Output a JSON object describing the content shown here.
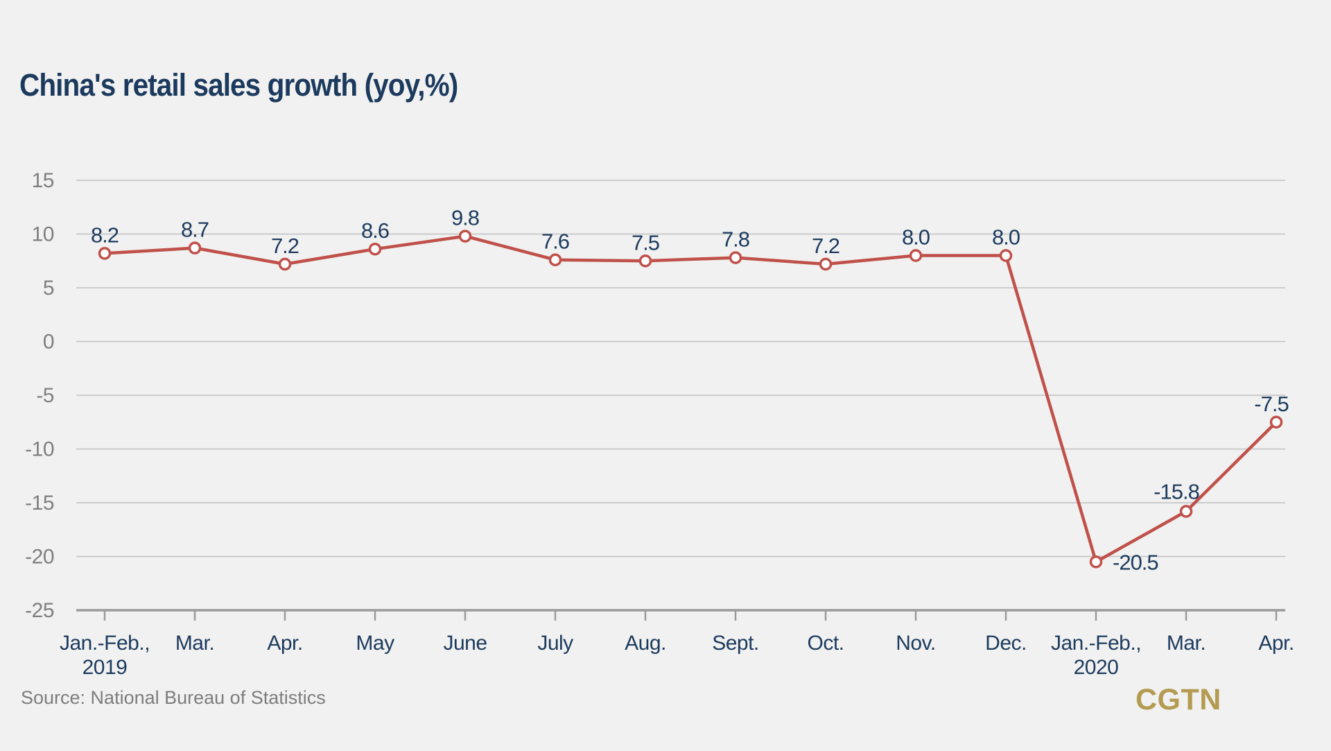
{
  "title": "China's retail sales growth (yoy,%)",
  "source": "Source: National Bureau of Statistics",
  "logo": "CGTN",
  "colors": {
    "background": "#f0f1f0",
    "title": "#1c3a5e",
    "line": "#c0504a",
    "marker_fill": "#ffffff",
    "grid": "#c6c6c6",
    "axis": "#9b9b9b",
    "y_tick_label": "#7f7f7f",
    "x_label": "#1c3a5e",
    "data_label": "#1c3a5e",
    "source_text": "#7d7d7d",
    "logo_gold": "#b49b51"
  },
  "chart_data": {
    "type": "line",
    "title": "China's retail sales growth (yoy,%)",
    "categories": [
      [
        "Jan.-Feb.,",
        "2019"
      ],
      [
        "Mar."
      ],
      [
        "Apr."
      ],
      [
        "May"
      ],
      [
        "June"
      ],
      [
        "July"
      ],
      [
        "Aug."
      ],
      [
        "Sept."
      ],
      [
        "Oct."
      ],
      [
        "Nov."
      ],
      [
        "Dec."
      ],
      [
        "Jan.-Feb.,",
        "2020"
      ],
      [
        "Mar."
      ],
      [
        "Apr."
      ]
    ],
    "values": [
      8.2,
      8.7,
      7.2,
      8.6,
      9.8,
      7.6,
      7.5,
      7.8,
      7.2,
      8.0,
      8.0,
      -20.5,
      -15.8,
      -7.5
    ],
    "labels": [
      "8.2",
      "8.7",
      "7.2",
      "8.6",
      "9.8",
      "7.6",
      "7.5",
      "7.8",
      "7.2",
      "8.0",
      "8.0",
      "-20.5",
      "-15.8",
      "-7.5"
    ],
    "xlabel": "",
    "ylabel": "",
    "ylim": [
      -25,
      15
    ],
    "yticks": [
      15,
      10,
      5,
      0,
      -5,
      -10,
      -15,
      -20,
      -25
    ],
    "grid": true,
    "legend": false
  }
}
